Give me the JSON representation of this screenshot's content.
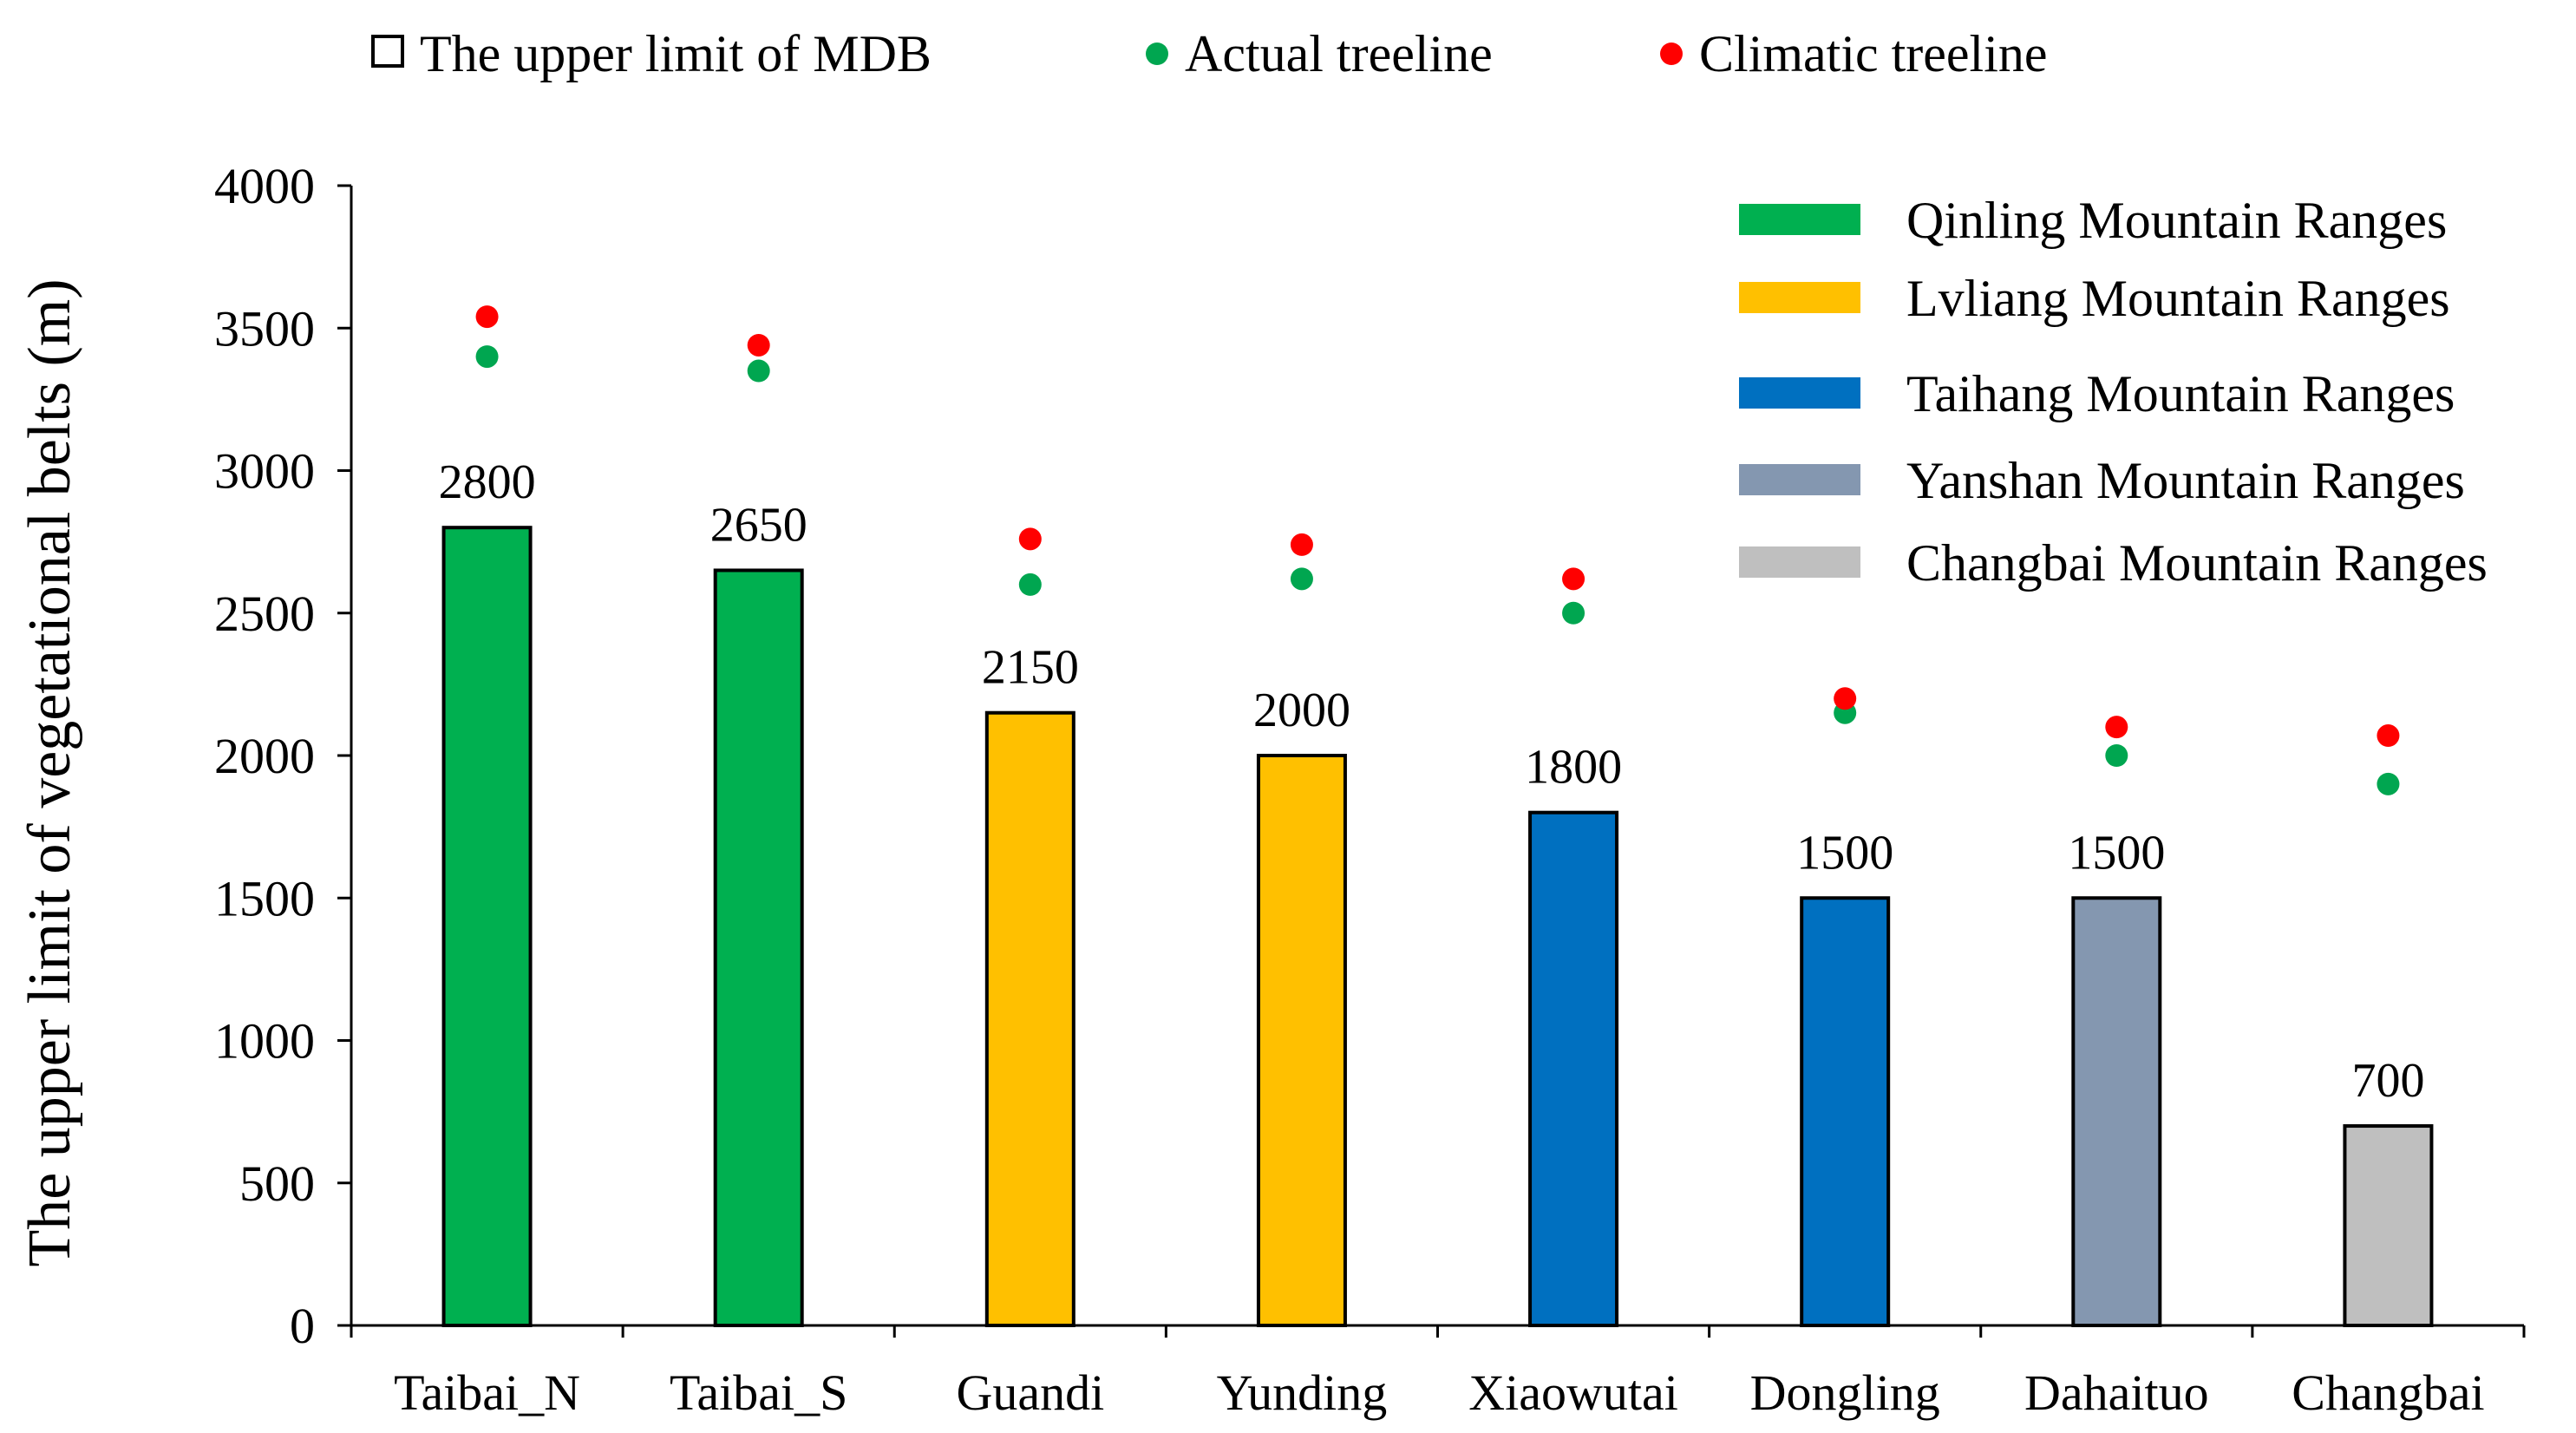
{
  "chart_data": {
    "type": "bar",
    "title": "",
    "xlabel": "",
    "ylabel": "The upper limit of  vegetational belts (m)",
    "ylim": [
      0,
      4000
    ],
    "yticks": [
      0,
      500,
      1000,
      1500,
      2000,
      2500,
      3000,
      3500,
      4000
    ],
    "categories": [
      "Taibai_N",
      "Taibai_S",
      "Guandi",
      "Yunding",
      "Xiaowutai",
      "Dongling",
      "Dahaituo",
      "Changbai"
    ],
    "values": [
      2800,
      2650,
      2150,
      2000,
      1800,
      1500,
      1500,
      700
    ],
    "value_labels": [
      "2800",
      "2650",
      "2150",
      "2000",
      "1800",
      "1500",
      "1500",
      "700"
    ],
    "bar_groups": [
      "Qinling",
      "Qinling",
      "Lvliang",
      "Lvliang",
      "Taihang",
      "Taihang",
      "Yanshan",
      "Changbai"
    ],
    "series": [
      {
        "name": "The upper limit of MDB",
        "type": "bar",
        "values": [
          2800,
          2650,
          2150,
          2000,
          1800,
          1500,
          1500,
          700
        ]
      },
      {
        "name": "Actual treeline",
        "type": "scatter",
        "color": "#00A650",
        "values": [
          3400,
          3350,
          2600,
          2620,
          2500,
          2150,
          2000,
          1900
        ]
      },
      {
        "name": "Climatic treeline",
        "type": "scatter",
        "color": "#FF0000",
        "values": [
          3540,
          3440,
          2760,
          2740,
          2620,
          2200,
          2100,
          2070
        ]
      }
    ],
    "top_legend": [
      {
        "label": "The upper limit of MDB",
        "marker": "square-outline"
      },
      {
        "label": "Actual treeline",
        "marker": "dot",
        "color": "#00A650"
      },
      {
        "label": "Climatic treeline",
        "marker": "dot",
        "color": "#FF0000"
      }
    ],
    "group_legend": [
      {
        "key": "Qinling",
        "label": "Qinling Mountain Ranges",
        "color": "#00B050"
      },
      {
        "key": "Lvliang",
        "label": "Lvliang Mountain Ranges",
        "color": "#FFC000"
      },
      {
        "key": "Taihang",
        "label": "Taihang Mountain Ranges",
        "color": "#0070C0"
      },
      {
        "key": "Yanshan",
        "label": "Yanshan Mountain Ranges",
        "color": "#8497B0"
      },
      {
        "key": "Changbai",
        "label": "Changbai Mountain Ranges",
        "color": "#BFBFBF"
      }
    ],
    "legend_position": "top and upper-right",
    "grid": false
  }
}
